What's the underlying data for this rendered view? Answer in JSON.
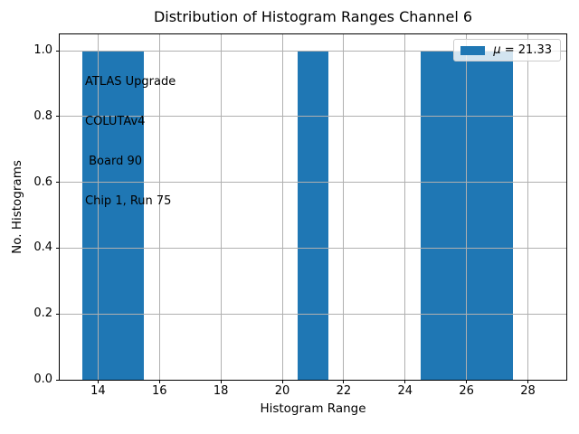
{
  "chart_data": {
    "type": "bar",
    "title": "Distribution of Histogram Ranges Channel 6",
    "xlabel": "Histogram Range",
    "ylabel": "No. Histograms",
    "xlim": [
      12.75,
      29.25
    ],
    "ylim": [
      0,
      1.05
    ],
    "grid": true,
    "grid_color": "#b0b0b0",
    "bar_color": "#1f77b4",
    "x_ticks": [
      {
        "value": 14,
        "label": "14"
      },
      {
        "value": 16,
        "label": "16"
      },
      {
        "value": 18,
        "label": "18"
      },
      {
        "value": 20,
        "label": "20"
      },
      {
        "value": 22,
        "label": "22"
      },
      {
        "value": 24,
        "label": "24"
      },
      {
        "value": 26,
        "label": "26"
      },
      {
        "value": 28,
        "label": "28"
      }
    ],
    "y_ticks": [
      {
        "value": 0.0,
        "label": "0.0"
      },
      {
        "value": 0.2,
        "label": "0.2"
      },
      {
        "value": 0.4,
        "label": "0.4"
      },
      {
        "value": 0.6,
        "label": "0.6"
      },
      {
        "value": 0.8,
        "label": "0.8"
      },
      {
        "value": 1.0,
        "label": "1.0"
      }
    ],
    "bars": [
      {
        "x_start": 13.5,
        "x_end": 15.5,
        "height": 1.0
      },
      {
        "x_start": 20.5,
        "x_end": 21.5,
        "height": 1.0
      },
      {
        "x_start": 24.5,
        "x_end": 27.5,
        "height": 1.0
      }
    ],
    "mean": 21.33,
    "legend": {
      "position": "upper right",
      "symbol": "μ",
      "rest": " = 21.33",
      "label": "μ = 21.33",
      "swatch_color": "#1f77b4"
    },
    "annotation_lines": [
      "ATLAS Upgrade",
      "COLUTAv4",
      " Board 90",
      "Chip 1, Run 75"
    ]
  }
}
